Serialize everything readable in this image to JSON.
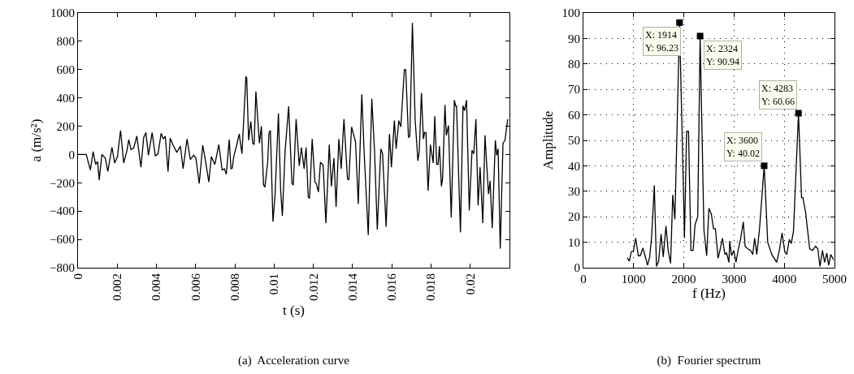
{
  "chart_data": [
    {
      "type": "line",
      "title": "(a)  Acceleration curve",
      "xlabel": "t (s)",
      "ylabel": "a (m/s²)",
      "xlim": [
        0,
        0.022
      ],
      "xticks": [
        0,
        0.002,
        0.004,
        0.006,
        0.008,
        0.01,
        0.012,
        0.014,
        0.016,
        0.018,
        0.02
      ],
      "ylim": [
        -800,
        1000
      ],
      "yticks": [
        -800,
        -600,
        -400,
        -200,
        0,
        200,
        400,
        600,
        800,
        1000
      ],
      "grid": false,
      "x": [
        0,
        0.00042,
        0.00063,
        0.00077,
        0.0009,
        0.001,
        0.00108,
        0.00122,
        0.00139,
        0.00152,
        0.00173,
        0.00187,
        0.00201,
        0.00217,
        0.00233,
        0.00249,
        0.00259,
        0.0027,
        0.00284,
        0.003,
        0.00321,
        0.00335,
        0.00346,
        0.00359,
        0.00378,
        0.00394,
        0.00408,
        0.00424,
        0.00435,
        0.00445,
        0.00459,
        0.0047,
        0.00487,
        0.00504,
        0.00522,
        0.00536,
        0.00556,
        0.00573,
        0.0059,
        0.00601,
        0.00618,
        0.00636,
        0.00649,
        0.00667,
        0.0068,
        0.00698,
        0.00718,
        0.00735,
        0.00746,
        0.00756,
        0.00771,
        0.0078,
        0.00787,
        0.00794,
        0.00808,
        0.00822,
        0.00836,
        0.00856,
        0.0086,
        0.0087,
        0.00881,
        0.00891,
        0.00898,
        0.00907,
        0.00925,
        0.00935,
        0.00946,
        0.00953,
        0.00967,
        0.00974,
        0.00981,
        0.00994,
        0.01005,
        0.01022,
        0.01033,
        0.01042,
        0.01056,
        0.01074,
        0.01091,
        0.01098,
        0.01112,
        0.01128,
        0.01139,
        0.01153,
        0.01163,
        0.01174,
        0.01181,
        0.01194,
        0.01208,
        0.01215,
        0.01226,
        0.01236,
        0.0125,
        0.01264,
        0.01281,
        0.01292,
        0.01305,
        0.01316,
        0.0133,
        0.01342,
        0.01356,
        0.01374,
        0.01381,
        0.01395,
        0.01415,
        0.01429,
        0.01447,
        0.0146,
        0.0148,
        0.01498,
        0.01512,
        0.01526,
        0.01544,
        0.01553,
        0.01571,
        0.01588,
        0.01598,
        0.01613,
        0.01622,
        0.01636,
        0.01646,
        0.01664,
        0.01671,
        0.01685,
        0.01692,
        0.01705,
        0.01719,
        0.01733,
        0.0174,
        0.01751,
        0.01761,
        0.01767,
        0.01774,
        0.01785,
        0.01797,
        0.01811,
        0.01819,
        0.01829,
        0.01836,
        0.01843,
        0.01853,
        0.01859,
        0.01871,
        0.01878,
        0.01889,
        0.01903,
        0.01919,
        0.01926,
        0.0193,
        0.0195,
        0.01963,
        0.01971,
        0.01981,
        0.01995,
        0.02009,
        0.02018,
        0.02029,
        0.0204,
        0.0205,
        0.02064,
        0.02075,
        0.02093,
        0.02101,
        0.02112,
        0.02128,
        0.02135,
        0.02142,
        0.02153,
        0.02167,
        0.02177,
        0.02191
      ],
      "series": [
        {
          "color": "#000000",
          "values": [
            0,
            0,
            -110,
            20,
            -70,
            -50,
            -180,
            0,
            -25,
            -120,
            50,
            -60,
            -15,
            170,
            -60,
            25,
            105,
            35,
            45,
            130,
            -90,
            120,
            155,
            -5,
            155,
            -10,
            5,
            150,
            110,
            130,
            -120,
            115,
            60,
            15,
            60,
            -100,
            110,
            -35,
            -5,
            -25,
            -205,
            65,
            -35,
            -195,
            -15,
            -70,
            70,
            -110,
            -100,
            -140,
            105,
            -100,
            -95,
            -15,
            60,
            145,
            5,
            548,
            545,
            100,
            235,
            80,
            70,
            445,
            80,
            200,
            -215,
            -230,
            -55,
            155,
            170,
            -475,
            -280,
            290,
            -245,
            -435,
            25,
            340,
            -205,
            -215,
            250,
            -80,
            50,
            -100,
            50,
            -300,
            -310,
            110,
            -195,
            -205,
            -265,
            -55,
            -75,
            -485,
            70,
            -225,
            -25,
            -370,
            110,
            -100,
            250,
            -170,
            -180,
            195,
            90,
            -350,
            425,
            -15,
            -570,
            395,
            25,
            -530,
            40,
            5,
            -510,
            145,
            -90,
            240,
            40,
            240,
            195,
            600,
            600,
            120,
            130,
            930,
            250,
            -45,
            25,
            435,
            110,
            155,
            155,
            -255,
            70,
            -60,
            270,
            -70,
            -70,
            60,
            -225,
            -170,
            350,
            135,
            205,
            -445,
            385,
            340,
            345,
            -550,
            345,
            310,
            385,
            -395,
            30,
            5,
            250,
            -360,
            -90,
            -485,
            135,
            -280,
            -185,
            -520,
            100,
            -5,
            40,
            -665,
            80,
            100,
            250
          ]
        }
      ]
    },
    {
      "type": "line",
      "title": "(b)  Fourier spectrum",
      "xlabel": "f (Hz)",
      "ylabel": "Amplitude",
      "xlim": [
        0,
        5000
      ],
      "xticks": [
        0,
        1000,
        2000,
        3000,
        4000,
        5000
      ],
      "ylim": [
        0,
        100
      ],
      "yticks": [
        0,
        10,
        20,
        30,
        40,
        50,
        60,
        70,
        80,
        90,
        100
      ],
      "grid": true,
      "x": [
        872,
        915,
        953,
        996,
        1040,
        1094,
        1131,
        1185,
        1228,
        1277,
        1320,
        1358,
        1412,
        1455,
        1498,
        1547,
        1590,
        1644,
        1687,
        1736,
        1779,
        1822,
        1914,
        1996,
        2012,
        2055,
        2093,
        2141,
        2185,
        2223,
        2277,
        2324,
        2400,
        2455,
        2498,
        2547,
        2590,
        2628,
        2682,
        2725,
        2768,
        2817,
        2850,
        2898,
        2913,
        2951,
        2994,
        3038,
        3086,
        3129,
        3183,
        3221,
        3275,
        3329,
        3372,
        3410,
        3453,
        3507,
        3600,
        3670,
        3751,
        3848,
        3902,
        3956,
        4010,
        4048,
        4102,
        4140,
        4183,
        4283,
        4344,
        4371,
        4425,
        4506,
        4560,
        4625,
        4668,
        4711,
        4760,
        4803,
        4846,
        4884,
        4927,
        4981
      ],
      "series": [
        {
          "color": "#000000",
          "values": [
            3.9,
            2.6,
            6.3,
            6.5,
            11.6,
            4.7,
            4.7,
            7.7,
            4.7,
            1.0,
            4.2,
            12.1,
            32.3,
            0.5,
            2.6,
            13.2,
            4.2,
            16.4,
            6.8,
            1.7,
            28.6,
            19.0,
            96.23,
            27.0,
            11.6,
            53.5,
            53.5,
            6.8,
            6.8,
            16.9,
            20.1,
            90.94,
            14.8,
            4.7,
            23.3,
            21.1,
            15.3,
            15.3,
            3.7,
            7.4,
            11.6,
            5.2,
            5.9,
            2.1,
            10.5,
            4.7,
            6.8,
            2.1,
            7.4,
            11.1,
            18.0,
            8.4,
            7.4,
            6.8,
            5.2,
            11.6,
            5.2,
            15.3,
            40.02,
            10.0,
            5.2,
            2.1,
            6.8,
            13.7,
            6.3,
            5.2,
            11.1,
            9.5,
            14.3,
            60.66,
            27.5,
            27.5,
            21.7,
            7.4,
            6.8,
            8.4,
            7.4,
            0.5,
            6.8,
            2.1,
            5.8,
            1.0,
            5.2,
            3.1
          ]
        }
      ],
      "annotations": [
        {
          "text": "X: 1914\nY: 96.23",
          "x": 1914,
          "y": 96.23
        },
        {
          "text": "X: 2324\nY: 90.94",
          "x": 2324,
          "y": 90.94
        },
        {
          "text": "X: 3600\nY: 40.02",
          "x": 3600,
          "y": 40.02
        },
        {
          "text": "X: 4283\nY: 60.66",
          "x": 4283,
          "y": 60.66
        }
      ]
    }
  ]
}
